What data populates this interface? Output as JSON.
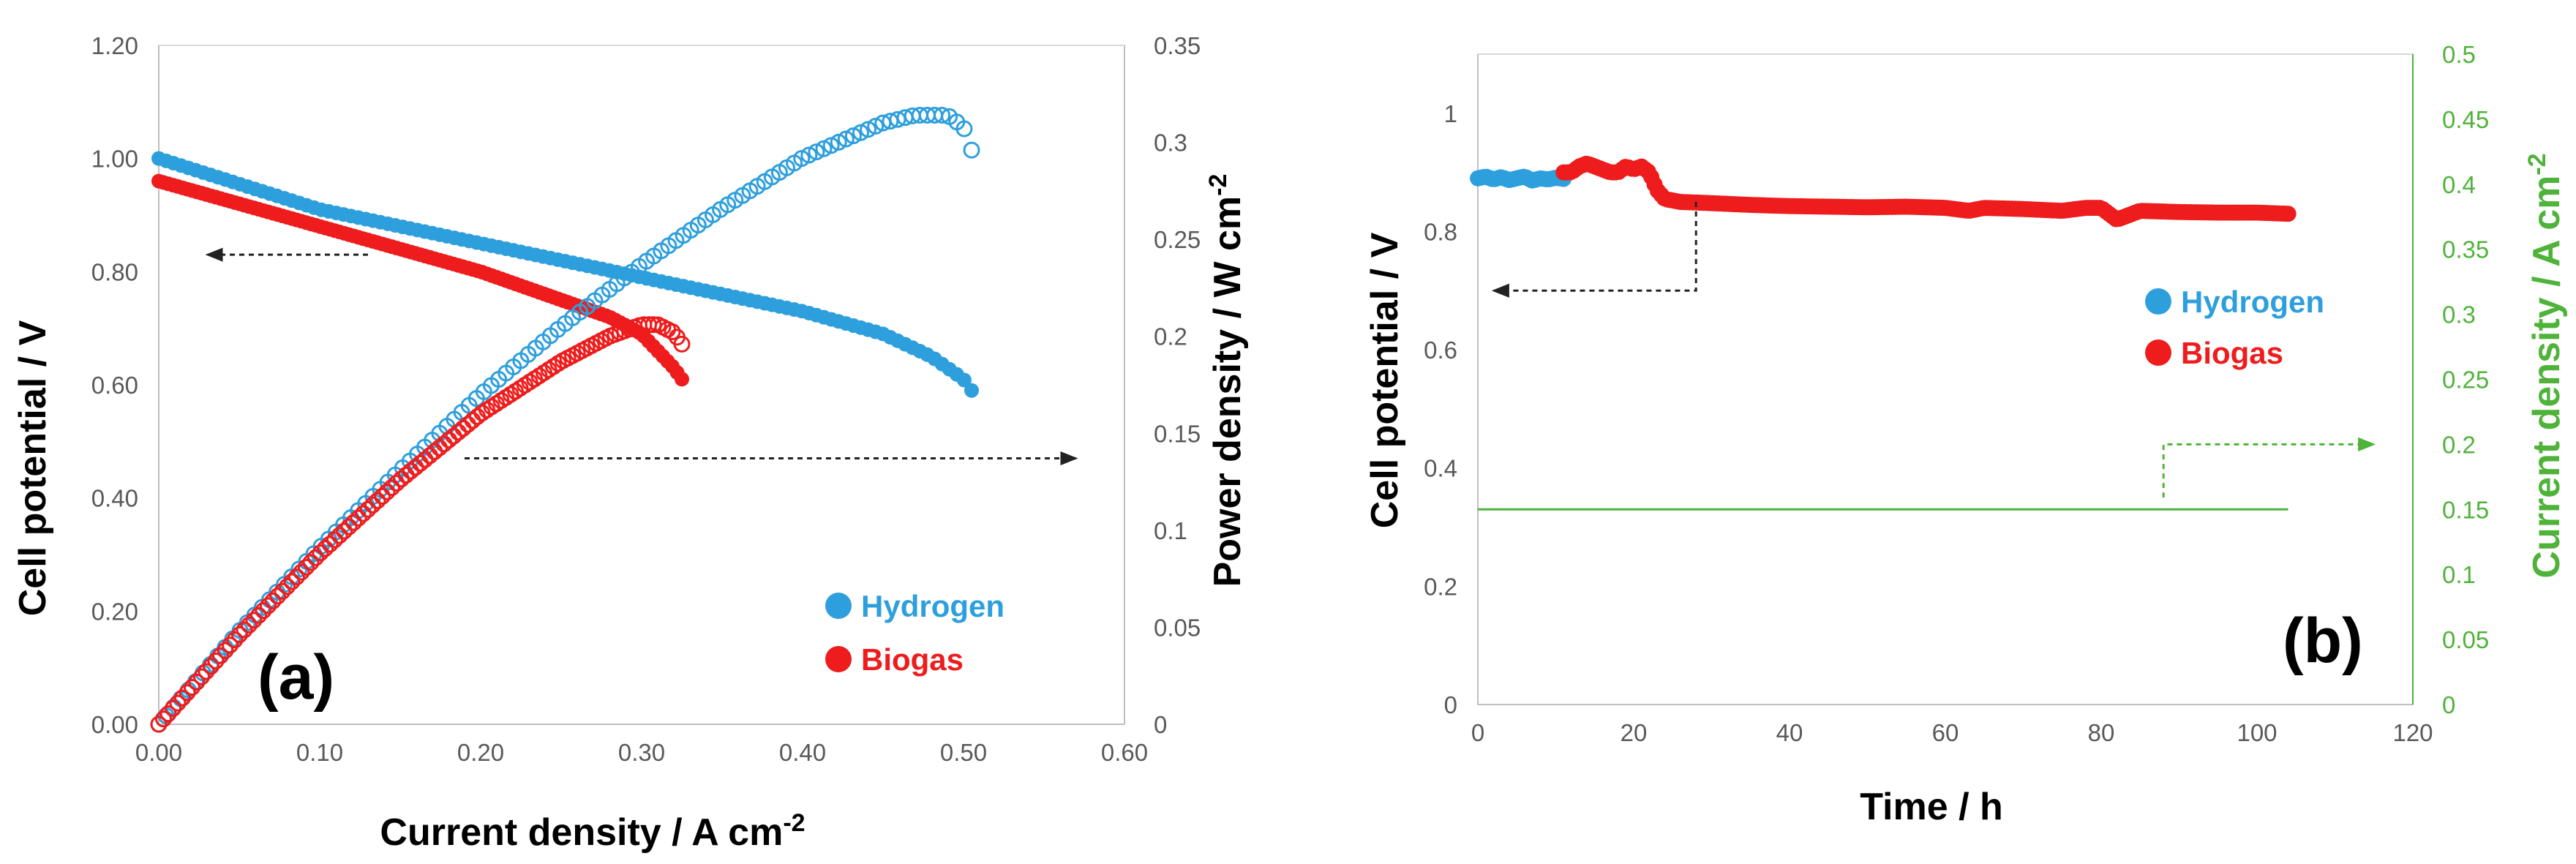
{
  "colors": {
    "hydrogen": "#2e9fdd",
    "biogas": "#ee1c1c",
    "current": "#4fb33a",
    "arrow": "#222222",
    "plot_border": "#d9d9d9",
    "axis_line": "#bfbfbf"
  },
  "chart_data": [
    {
      "panel": "a",
      "type": "scatter",
      "panel_label": "(a)",
      "xlabel": "Current density / A cm",
      "xlabel_sup": "-2",
      "ylabel_left": "Cell potential / V",
      "ylabel_right": "Power density / W cm",
      "ylabel_right_sup": "-2",
      "xlim": [
        0,
        0.6
      ],
      "ylim_left": [
        0,
        1.2
      ],
      "ylim_right": [
        0,
        0.35
      ],
      "x_ticks": [
        "0.00",
        "0.10",
        "0.20",
        "0.30",
        "0.40",
        "0.50",
        "0.60"
      ],
      "y_left_ticks": [
        "0.00",
        "0.20",
        "0.40",
        "0.60",
        "0.80",
        "1.00",
        "1.20"
      ],
      "y_right_ticks": [
        "0",
        "0.05",
        "0.1",
        "0.15",
        "0.2",
        "0.25",
        "0.3",
        "0.35"
      ],
      "legend": [
        {
          "label": "Hydrogen",
          "series": "hydrogen"
        },
        {
          "label": "Biogas",
          "series": "biogas"
        }
      ],
      "legend_position": "bottom-right",
      "annotations": [
        {
          "text": "",
          "points_to": "left-axis",
          "from": [
            0.13,
            0.83
          ],
          "to": [
            0.03,
            0.83
          ]
        },
        {
          "text": "",
          "points_to": "right-axis",
          "from": [
            0.19,
            0.47
          ],
          "to": [
            0.57,
            0.47
          ]
        }
      ],
      "series": [
        {
          "name": "Hydrogen",
          "quantity": "cell potential",
          "axis": "left",
          "marker": "filled",
          "color_key": "hydrogen",
          "x": [
            0,
            0.05,
            0.1,
            0.15,
            0.2,
            0.25,
            0.3,
            0.35,
            0.4,
            0.45,
            0.48,
            0.5,
            0.505
          ],
          "y": [
            1.0,
            0.955,
            0.91,
            0.88,
            0.85,
            0.82,
            0.79,
            0.76,
            0.73,
            0.69,
            0.65,
            0.61,
            0.59
          ]
        },
        {
          "name": "Biogas",
          "quantity": "cell potential",
          "axis": "left",
          "marker": "filled",
          "color_key": "biogas",
          "x": [
            0,
            0.05,
            0.1,
            0.15,
            0.2,
            0.25,
            0.28,
            0.3,
            0.31,
            0.32,
            0.325
          ],
          "y": [
            0.96,
            0.92,
            0.88,
            0.84,
            0.8,
            0.75,
            0.72,
            0.69,
            0.66,
            0.63,
            0.61
          ]
        },
        {
          "name": "Hydrogen",
          "quantity": "power density",
          "axis": "right",
          "marker": "open",
          "color_key": "hydrogen",
          "x": [
            0,
            0.05,
            0.1,
            0.15,
            0.2,
            0.25,
            0.3,
            0.35,
            0.4,
            0.45,
            0.47,
            0.49,
            0.5,
            0.505
          ],
          "y": [
            0,
            0.048,
            0.091,
            0.131,
            0.17,
            0.205,
            0.237,
            0.266,
            0.292,
            0.31,
            0.314,
            0.314,
            0.308,
            0.296
          ]
        },
        {
          "name": "Biogas",
          "quantity": "power density",
          "axis": "right",
          "marker": "open",
          "color_key": "biogas",
          "x": [
            0,
            0.05,
            0.1,
            0.15,
            0.2,
            0.25,
            0.28,
            0.3,
            0.31,
            0.32,
            0.325
          ],
          "y": [
            0,
            0.046,
            0.088,
            0.126,
            0.16,
            0.187,
            0.2,
            0.206,
            0.206,
            0.202,
            0.196
          ]
        }
      ]
    },
    {
      "panel": "b",
      "type": "scatter",
      "panel_label": "(b)",
      "xlabel": "Time / h",
      "ylabel_left": "Cell potential / V",
      "ylabel_right": "Current density / A cm",
      "ylabel_right_sup": "-2",
      "xlim": [
        0,
        120
      ],
      "ylim_left": [
        0,
        1.1
      ],
      "ylim_right": [
        0,
        0.5
      ],
      "x_ticks": [
        "0",
        "20",
        "40",
        "60",
        "80",
        "100",
        "120"
      ],
      "y_left_ticks": [
        "0",
        "0.2",
        "0.4",
        "0.6",
        "0.8",
        "1"
      ],
      "y_right_ticks": [
        "0",
        "0.05",
        "0.1",
        "0.15",
        "0.2",
        "0.25",
        "0.3",
        "0.35",
        "0.4",
        "0.45",
        "0.5"
      ],
      "legend": [
        {
          "label": "Hydrogen",
          "series": "hydrogen"
        },
        {
          "label": "Biogas",
          "series": "biogas"
        }
      ],
      "legend_position": "middle-right",
      "annotations": [
        {
          "text": "",
          "points_to": "left-axis",
          "path": [
            [
              28,
              0.85
            ],
            [
              28,
              0.7
            ],
            [
              2,
              0.7
            ]
          ]
        },
        {
          "text": "",
          "points_to": "right-axis",
          "path": [
            [
              88,
              0.35
            ],
            [
              88,
              0.44
            ],
            [
              115,
              0.44
            ]
          ]
        }
      ],
      "series": [
        {
          "name": "Hydrogen",
          "quantity": "cell potential",
          "axis": "left",
          "color_key": "hydrogen",
          "x": [
            0,
            1,
            2,
            3,
            4,
            5,
            6,
            7,
            8,
            9,
            10,
            11
          ],
          "y": [
            0.89,
            0.893,
            0.888,
            0.892,
            0.887,
            0.89,
            0.893,
            0.886,
            0.89,
            0.888,
            0.891,
            0.889
          ]
        },
        {
          "name": "Biogas",
          "quantity": "cell potential",
          "axis": "left",
          "color_key": "biogas",
          "x": [
            11,
            12,
            13,
            14,
            15,
            16,
            17,
            18,
            19,
            20,
            21,
            22,
            23,
            24,
            26,
            30,
            35,
            40,
            45,
            50,
            55,
            60,
            63,
            65,
            70,
            75,
            78,
            80,
            82,
            85,
            90,
            95,
            100,
            104
          ],
          "y": [
            0.9,
            0.9,
            0.91,
            0.915,
            0.91,
            0.905,
            0.9,
            0.9,
            0.91,
            0.905,
            0.91,
            0.9,
            0.87,
            0.855,
            0.85,
            0.848,
            0.845,
            0.843,
            0.842,
            0.841,
            0.842,
            0.84,
            0.835,
            0.84,
            0.838,
            0.835,
            0.84,
            0.84,
            0.82,
            0.835,
            0.833,
            0.832,
            0.832,
            0.83
          ]
        },
        {
          "name": "Current density",
          "quantity": "current density",
          "axis": "right",
          "color_key": "current",
          "x": [
            0,
            104
          ],
          "y": [
            0.15,
            0.15
          ]
        }
      ]
    }
  ]
}
